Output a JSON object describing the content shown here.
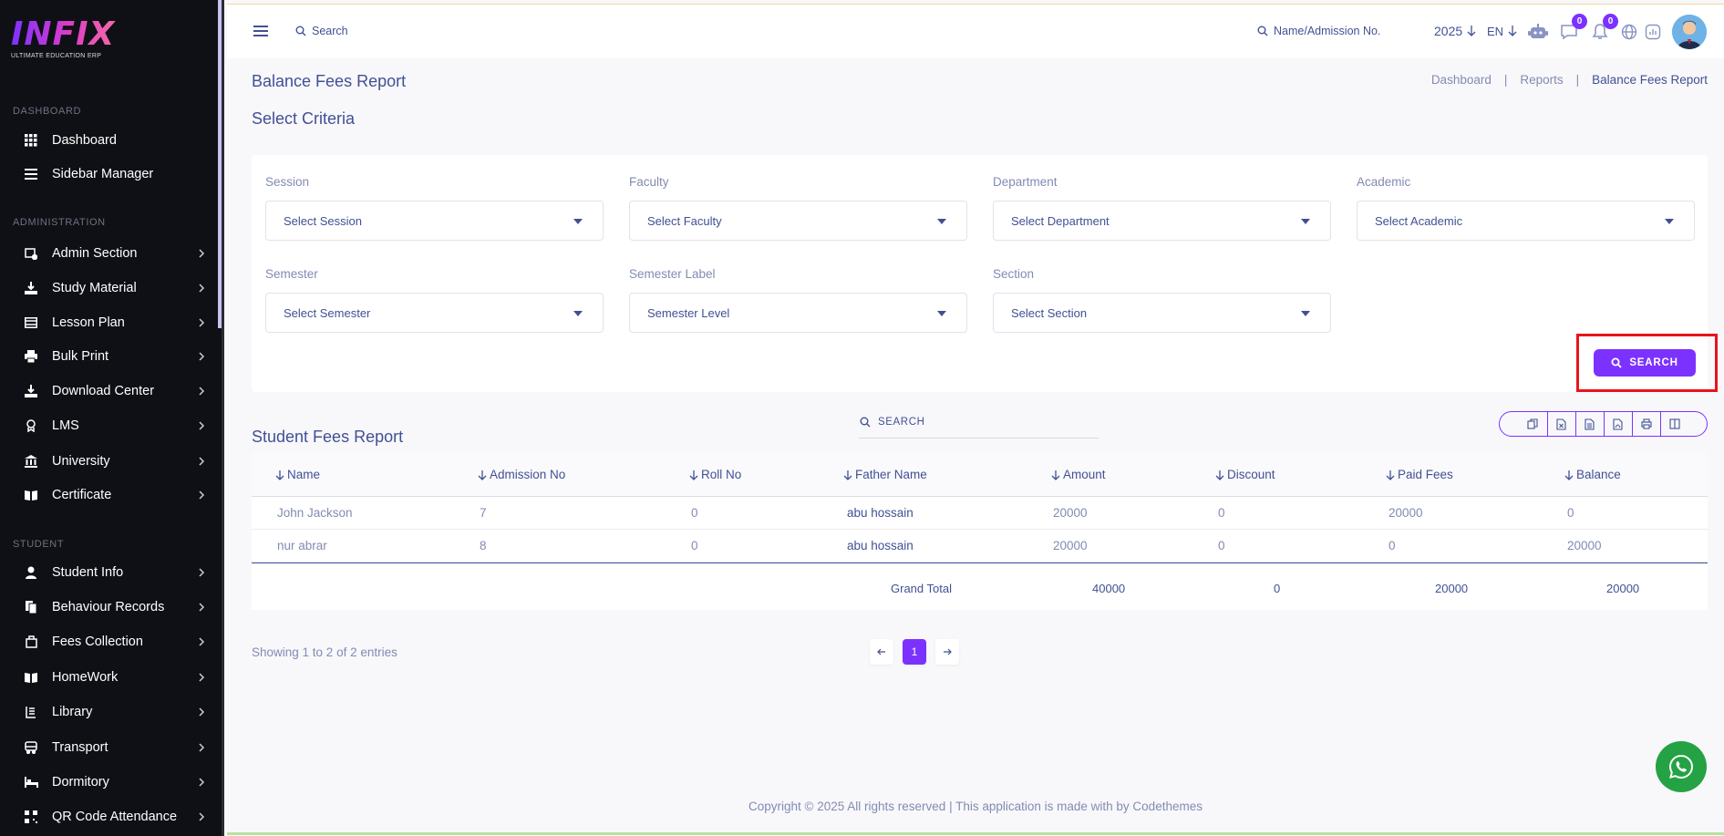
{
  "brand": {
    "logo_text": "INFIX",
    "logo_sub": "ULTIMATE EDUCATION ERP"
  },
  "sidebar": {
    "sections": [
      "DASHBOARD",
      "ADMINISTRATION",
      "STUDENT"
    ],
    "items": [
      {
        "label": "Dashboard",
        "icon": "grid-icon"
      },
      {
        "label": "Sidebar Manager",
        "icon": "bars-icon"
      },
      {
        "label": "Admin Section",
        "icon": "admin-icon"
      },
      {
        "label": "Study Material",
        "icon": "download-icon"
      },
      {
        "label": "Lesson Plan",
        "icon": "table-icon"
      },
      {
        "label": "Bulk Print",
        "icon": "printer-icon"
      },
      {
        "label": "Download Center",
        "icon": "download-icon"
      },
      {
        "label": "LMS",
        "icon": "lms-icon"
      },
      {
        "label": "University",
        "icon": "university-icon"
      },
      {
        "label": "Certificate",
        "icon": "book-icon"
      },
      {
        "label": "Student Info",
        "icon": "user-icon"
      },
      {
        "label": "Behaviour Records",
        "icon": "file-icon"
      },
      {
        "label": "Fees Collection",
        "icon": "fees-icon"
      },
      {
        "label": "HomeWork",
        "icon": "book-icon"
      },
      {
        "label": "Library",
        "icon": "library-icon"
      },
      {
        "label": "Transport",
        "icon": "bus-icon"
      },
      {
        "label": "Dormitory",
        "icon": "bed-icon"
      },
      {
        "label": "QR Code Attendance",
        "icon": "qr-icon"
      }
    ]
  },
  "topbar": {
    "search_label": "Search",
    "search2_label": "Name/Admission No.",
    "year": "2025",
    "lang": "EN",
    "chat_badge": "0",
    "notification_badge": "0"
  },
  "page": {
    "title": "Balance Fees Report",
    "breadcrumb": [
      "Dashboard",
      "Reports",
      "Balance Fees Report"
    ],
    "criteria_title": "Select Criteria"
  },
  "criteria": {
    "fields": [
      {
        "label": "Session",
        "value": "Select Session"
      },
      {
        "label": "Faculty",
        "value": "Select Faculty"
      },
      {
        "label": "Department",
        "value": "Select Department"
      },
      {
        "label": "Academic",
        "value": "Select Academic"
      },
      {
        "label": "Semester",
        "value": "Select Semester"
      },
      {
        "label": "Semester Label",
        "value": "Semester Level"
      },
      {
        "label": "Section",
        "value": "Select Section"
      }
    ],
    "search_button": "SEARCH"
  },
  "report": {
    "title": "Student Fees Report",
    "search_placeholder": "SEARCH",
    "columns": [
      "Name",
      "Admission No",
      "Roll No",
      "Father Name",
      "Amount",
      "Discount",
      "Paid Fees",
      "Balance"
    ],
    "rows": [
      [
        "John Jackson",
        "7",
        "0",
        "abu hossain",
        "20000",
        "0",
        "20000",
        "0"
      ],
      [
        "nur abrar",
        "8",
        "0",
        "abu hossain",
        "20000",
        "0",
        "0",
        "20000"
      ]
    ],
    "grand_total_label": "Grand Total",
    "totals": [
      "40000",
      "0",
      "20000",
      "20000"
    ],
    "showing": "Showing 1 to 2 of 2 entries",
    "current_page": "1"
  },
  "footer": {
    "text": "Copyright © 2025 All rights reserved | This application is made with by Codethemes"
  },
  "colors": {
    "accent": "#7c32ff",
    "text": "#415094",
    "muted": "#828bb2",
    "sidebar_bg": "#0f1016",
    "highlight": "#e8141c",
    "whatsapp": "#25a244"
  }
}
